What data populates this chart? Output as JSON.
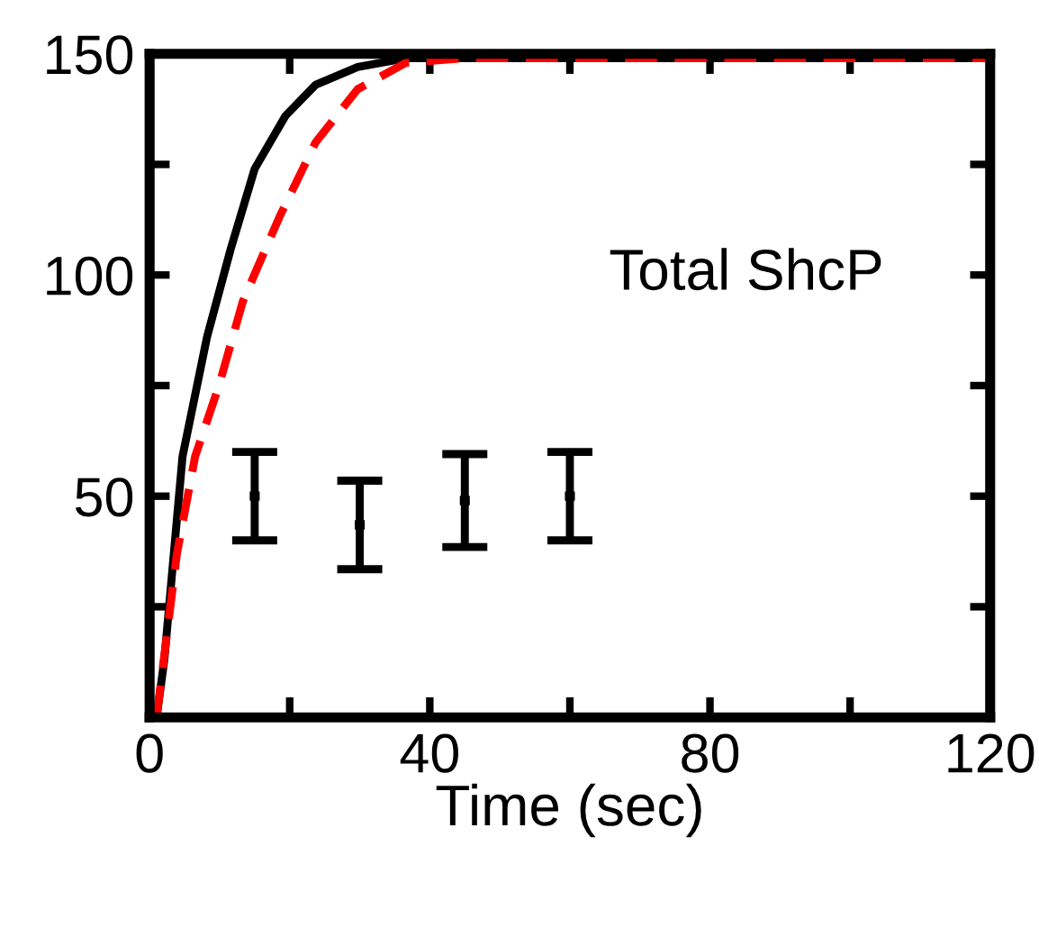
{
  "chart_data": {
    "type": "line",
    "xlabel": "Time (sec)",
    "series": [
      {
        "color": "#000000",
        "line_style": "solid",
        "x": [
          1,
          2.1,
          4.7,
          8.2,
          11.6,
          15,
          19.4,
          23.7,
          29.7,
          36.6,
          45,
          120
        ],
        "values": [
          0,
          13,
          59,
          86,
          106,
          124,
          136,
          143,
          147,
          149,
          149,
          149
        ]
      },
      {
        "color": "#ff0000",
        "line_style": "dashed",
        "x": [
          1,
          3.9,
          6.5,
          9.9,
          13.3,
          18.5,
          23.7,
          29.7,
          36.6,
          45,
          120
        ],
        "values": [
          0,
          37,
          59,
          75,
          94,
          113,
          130,
          142,
          148,
          149,
          149
        ]
      },
      {
        "type": "scatter",
        "color": "#000000",
        "marker": "square",
        "x": [
          15,
          30,
          45,
          60
        ],
        "values": [
          50,
          43.5,
          49,
          50
        ],
        "errors": [
          10,
          10,
          10.5,
          10
        ]
      }
    ],
    "annotations": [
      "Total ShcP"
    ],
    "xlim": [
      0,
      120
    ],
    "ylim": [
      0,
      150
    ],
    "xticks": [
      0,
      {
        "value": 20,
        "label": null
      },
      40,
      {
        "value": 60,
        "label": null
      },
      80,
      {
        "value": 100,
        "label": null
      },
      120
    ],
    "yticks": [
      {
        "value": 25,
        "label": null
      },
      50,
      {
        "value": 75,
        "label": null
      },
      100,
      {
        "value": 125,
        "label": null
      },
      150
    ],
    "grid": false
  }
}
